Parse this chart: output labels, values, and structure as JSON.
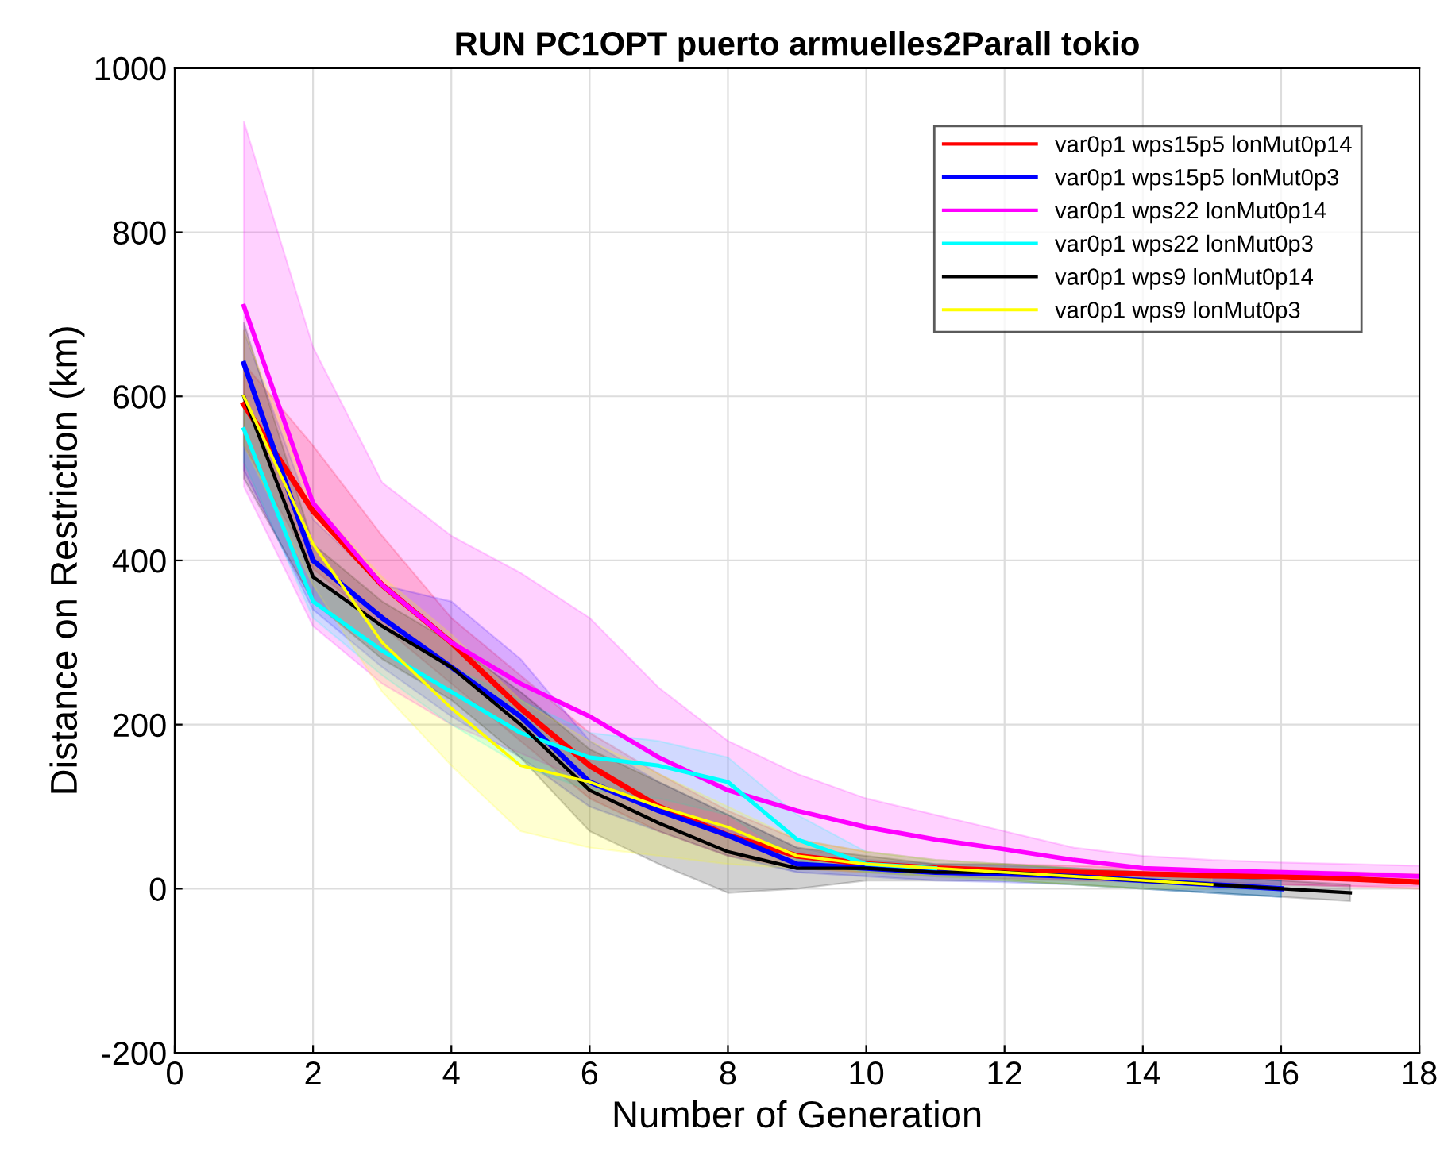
{
  "chart_data": {
    "type": "line",
    "title": "RUN PC1OPT puerto armuelles2Parall tokio",
    "xlabel": "Number of Generation",
    "ylabel": "Distance on Restriction (km)",
    "xlim": [
      0,
      18
    ],
    "ylim": [
      -200,
      1000
    ],
    "xticks": [
      0,
      2,
      4,
      6,
      8,
      10,
      12,
      14,
      16,
      18
    ],
    "yticks": [
      -200,
      0,
      200,
      400,
      600,
      800,
      1000
    ],
    "grid": true,
    "legend": "top right",
    "line_style": "solid",
    "marker": "none",
    "series": [
      {
        "name": "var0p1 wps15p5 lonMut0p14",
        "color": "#ff0000",
        "x": [
          1,
          2,
          3,
          4,
          5,
          6,
          7,
          8,
          9,
          10,
          11,
          12,
          13,
          14,
          15,
          16,
          17,
          18
        ],
        "values": [
          590,
          460,
          370,
          300,
          220,
          150,
          100,
          65,
          40,
          30,
          25,
          22,
          20,
          18,
          16,
          15,
          12,
          8
        ],
        "lower": [
          540,
          390,
          320,
          250,
          180,
          110,
          70,
          40,
          25,
          20,
          15,
          12,
          10,
          10,
          8,
          5,
          3,
          0
        ],
        "upper": [
          640,
          540,
          430,
          330,
          260,
          190,
          140,
          95,
          60,
          45,
          35,
          30,
          28,
          25,
          22,
          22,
          20,
          18
        ]
      },
      {
        "name": "var0p1 wps15p5 lonMut0p3",
        "color": "#0000ff",
        "x": [
          1,
          2,
          3,
          4,
          5,
          6,
          7,
          8,
          9,
          10,
          11,
          12,
          13,
          14,
          15,
          16
        ],
        "values": [
          640,
          400,
          330,
          270,
          210,
          130,
          95,
          65,
          30,
          25,
          20,
          18,
          15,
          10,
          5,
          0
        ],
        "lower": [
          510,
          340,
          270,
          210,
          160,
          100,
          70,
          40,
          20,
          15,
          10,
          8,
          5,
          0,
          -5,
          -10
        ],
        "upper": [
          680,
          450,
          370,
          350,
          280,
          180,
          130,
          90,
          50,
          35,
          30,
          28,
          25,
          20,
          15,
          10
        ]
      },
      {
        "name": "var0p1 wps22 lonMut0p14",
        "color": "#ff00ff",
        "x": [
          1,
          2,
          3,
          4,
          5,
          6,
          7,
          8,
          9,
          10,
          11,
          12,
          13,
          14,
          15,
          16,
          17,
          18
        ],
        "values": [
          710,
          470,
          370,
          300,
          250,
          210,
          160,
          120,
          95,
          75,
          60,
          48,
          35,
          25,
          22,
          20,
          18,
          15
        ],
        "lower": [
          490,
          320,
          250,
          200,
          165,
          130,
          100,
          70,
          45,
          30,
          20,
          15,
          10,
          8,
          5,
          5,
          3,
          3
        ],
        "upper": [
          935,
          660,
          495,
          430,
          385,
          330,
          245,
          180,
          140,
          110,
          90,
          70,
          50,
          40,
          35,
          32,
          30,
          28
        ]
      },
      {
        "name": "var0p1 wps22 lonMut0p3",
        "color": "#00ffff",
        "x": [
          1,
          2,
          3,
          4,
          5,
          6,
          7,
          8,
          9,
          10,
          11,
          12,
          13,
          14,
          15,
          16
        ],
        "values": [
          560,
          350,
          290,
          240,
          190,
          160,
          150,
          130,
          60,
          30,
          25,
          null,
          null,
          null,
          null,
          null
        ],
        "lower": [
          520,
          330,
          260,
          200,
          150,
          120,
          110,
          90,
          35,
          20,
          15,
          10,
          5,
          0,
          -5,
          -10
        ],
        "upper": [
          600,
          380,
          320,
          270,
          230,
          190,
          180,
          160,
          90,
          45,
          35,
          30,
          25,
          20,
          15,
          10
        ]
      },
      {
        "name": "var0p1 wps9 lonMut0p14",
        "color": "#000000",
        "x": [
          1,
          2,
          3,
          4,
          5,
          6,
          7,
          8,
          9,
          10,
          11,
          12,
          13,
          14,
          15,
          16,
          17
        ],
        "values": [
          600,
          380,
          320,
          270,
          200,
          120,
          80,
          45,
          25,
          25,
          20,
          20,
          15,
          10,
          5,
          0,
          -5
        ],
        "lower": [
          500,
          350,
          280,
          230,
          160,
          70,
          30,
          -5,
          0,
          10,
          10,
          10,
          5,
          0,
          -5,
          -10,
          -15
        ],
        "upper": [
          690,
          420,
          350,
          300,
          240,
          170,
          130,
          90,
          50,
          40,
          30,
          30,
          25,
          20,
          15,
          10,
          5
        ]
      },
      {
        "name": "var0p1 wps9 lonMut0p3",
        "color": "#ffff00",
        "x": [
          1,
          2,
          3,
          4,
          5,
          6,
          7,
          8,
          9,
          10,
          11,
          12,
          13,
          14,
          15
        ],
        "values": [
          600,
          420,
          300,
          220,
          150,
          130,
          100,
          75,
          40,
          30,
          25,
          20,
          15,
          10,
          5
        ],
        "lower": [
          540,
          370,
          240,
          150,
          70,
          50,
          40,
          30,
          25,
          20,
          15,
          10,
          5,
          0,
          0
        ],
        "upper": [
          680,
          470,
          380,
          310,
          230,
          180,
          140,
          100,
          60,
          45,
          35,
          30,
          25,
          20,
          15
        ]
      }
    ]
  }
}
